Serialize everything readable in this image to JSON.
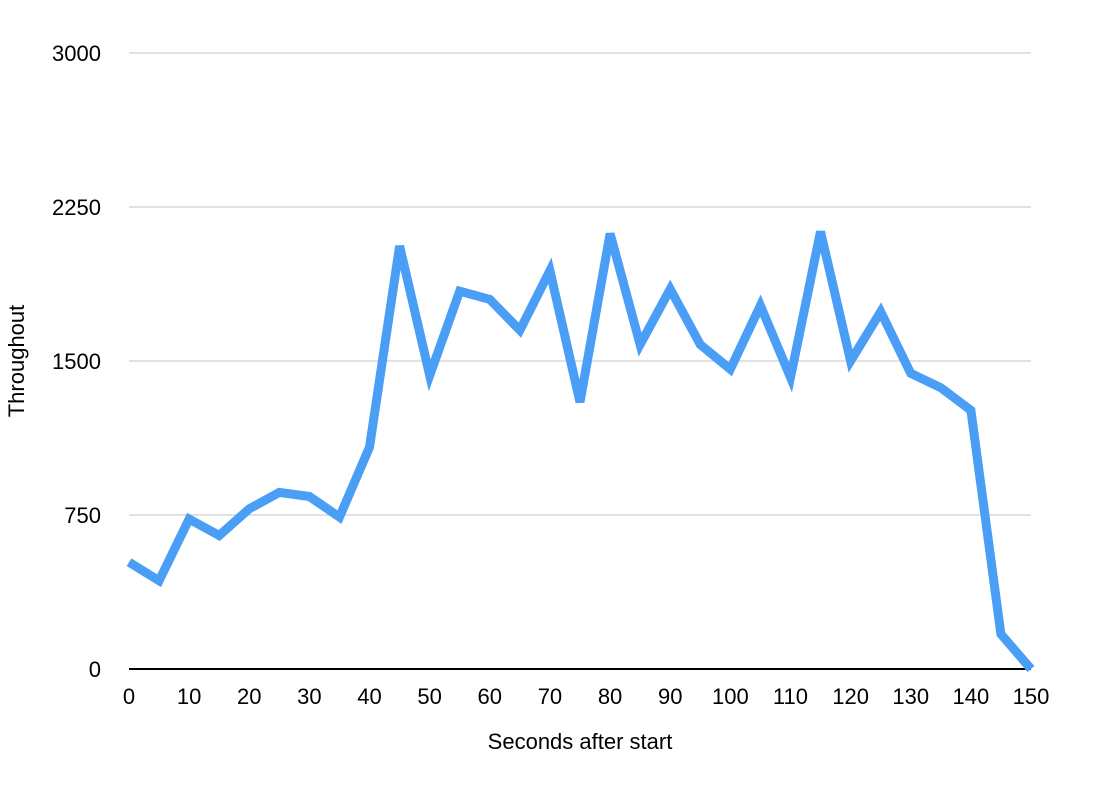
{
  "chart_data": {
    "type": "line",
    "title": "",
    "xlabel": "Seconds after start",
    "ylabel": "Throughout",
    "xlim": [
      0,
      150
    ],
    "ylim": [
      0,
      3000
    ],
    "x_ticks": [
      0,
      10,
      20,
      30,
      40,
      50,
      60,
      70,
      80,
      90,
      100,
      110,
      120,
      130,
      140,
      150
    ],
    "y_ticks": [
      0,
      750,
      1500,
      2250,
      3000
    ],
    "grid": "horizontal",
    "legend": "none",
    "series": [
      {
        "color": "#4A9EF5",
        "x": [
          0,
          5,
          10,
          15,
          20,
          25,
          30,
          35,
          40,
          45,
          50,
          55,
          60,
          65,
          70,
          75,
          80,
          85,
          90,
          95,
          100,
          105,
          110,
          115,
          120,
          125,
          130,
          135,
          140,
          145,
          150
        ],
        "y": [
          520,
          430,
          730,
          650,
          780,
          860,
          840,
          740,
          1080,
          2060,
          1430,
          1840,
          1800,
          1650,
          1940,
          1300,
          2120,
          1580,
          1850,
          1580,
          1460,
          1770,
          1420,
          2130,
          1500,
          1740,
          1440,
          1370,
          1260,
          170,
          0
        ]
      }
    ]
  }
}
